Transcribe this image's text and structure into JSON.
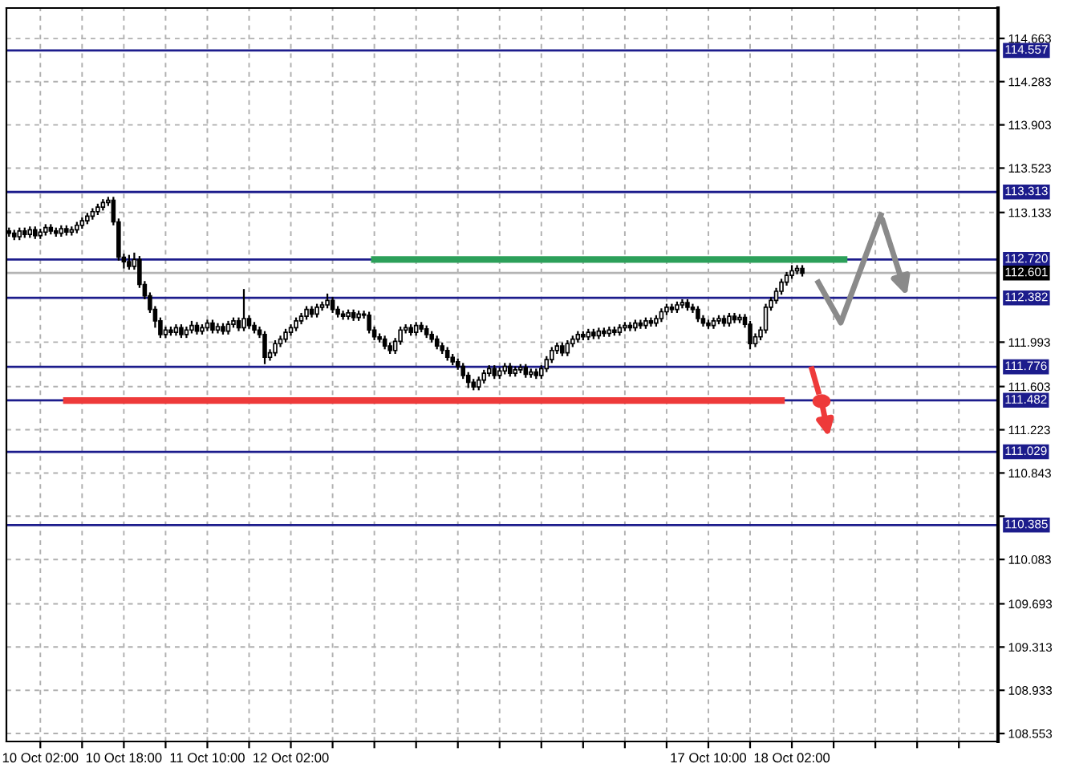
{
  "chart_data": {
    "type": "candlestick",
    "categories": [
      null,
      null,
      null,
      null,
      null,
      null,
      "10 Oct 02:00",
      null,
      null,
      null,
      null,
      null,
      null,
      null,
      null,
      null,
      null,
      null,
      null,
      null,
      null,
      null,
      "10 Oct 18:00",
      null,
      null,
      null,
      null,
      null,
      null,
      null,
      null,
      null,
      null,
      null,
      null,
      null,
      null,
      null,
      "11 Oct 10:00",
      null,
      null,
      null,
      null,
      null,
      null,
      null,
      null,
      null,
      null,
      null,
      null,
      null,
      null,
      null,
      "12 Oct 02:00",
      null,
      null,
      null,
      null,
      null,
      null,
      null,
      null,
      null,
      null,
      null,
      null,
      null,
      null,
      null,
      null,
      null,
      null,
      null,
      null,
      null,
      null,
      null,
      null,
      null,
      null,
      null,
      null,
      null,
      null,
      null,
      null,
      null,
      null,
      null,
      null,
      null,
      null,
      null,
      null,
      null,
      null,
      null,
      null,
      null,
      null,
      null,
      null,
      null,
      null,
      null,
      null,
      null,
      null,
      null,
      null,
      null,
      null,
      null,
      null,
      null,
      null,
      null,
      null,
      null,
      null,
      null,
      null,
      null,
      null,
      null,
      null,
      null,
      null,
      null,
      null,
      null,
      null,
      null,
      "17 Oct 10:00",
      null,
      null,
      null,
      null,
      null,
      null,
      null,
      null,
      null,
      null,
      null,
      null,
      null,
      null,
      null,
      "18 Oct 02:00",
      null,
      null,
      null,
      null,
      null,
      null,
      null,
      null,
      null,
      null,
      null,
      null,
      null,
      null,
      null,
      null,
      null,
      null,
      null,
      null,
      null,
      null,
      null,
      null,
      null,
      null,
      null,
      null,
      null,
      null,
      null,
      null,
      null,
      null,
      null,
      null,
      null,
      null,
      null
    ],
    "ohlc": [
      [
        112.97,
        113.0,
        112.92,
        112.95
      ],
      [
        112.95,
        112.98,
        112.89,
        112.92
      ],
      [
        112.92,
        113.0,
        112.89,
        112.97
      ],
      [
        112.97,
        113.0,
        112.91,
        112.94
      ],
      [
        112.94,
        113.01,
        112.91,
        112.98
      ],
      [
        112.98,
        113.01,
        112.9,
        112.93
      ],
      [
        112.93,
        112.99,
        112.9,
        112.96
      ],
      [
        112.96,
        113.03,
        112.93,
        113.0
      ],
      [
        113.0,
        113.03,
        112.94,
        112.97
      ],
      [
        112.97,
        113.0,
        112.92,
        112.95
      ],
      [
        112.95,
        113.02,
        112.92,
        112.99
      ],
      [
        112.99,
        113.02,
        112.93,
        112.96
      ],
      [
        112.96,
        113.01,
        112.93,
        112.98
      ],
      [
        112.98,
        113.05,
        112.95,
        113.02
      ],
      [
        113.02,
        113.09,
        112.99,
        113.06
      ],
      [
        113.06,
        113.13,
        113.03,
        113.1
      ],
      [
        113.1,
        113.17,
        113.07,
        113.14
      ],
      [
        113.14,
        113.21,
        113.11,
        113.18
      ],
      [
        113.18,
        113.25,
        113.15,
        113.22
      ],
      [
        113.22,
        113.27,
        113.19,
        113.24
      ],
      [
        113.24,
        113.27,
        113.02,
        113.05
      ],
      [
        113.05,
        113.08,
        112.71,
        112.74
      ],
      [
        112.74,
        112.77,
        112.64,
        112.7
      ],
      [
        112.7,
        112.76,
        112.63,
        112.66
      ],
      [
        112.66,
        112.78,
        112.63,
        112.72
      ],
      [
        112.72,
        112.75,
        112.47,
        112.5
      ],
      [
        112.5,
        112.53,
        112.37,
        112.4
      ],
      [
        112.4,
        112.43,
        112.25,
        112.28
      ],
      [
        112.28,
        112.31,
        112.12,
        112.18
      ],
      [
        112.18,
        112.21,
        112.03,
        112.06
      ],
      [
        112.06,
        112.13,
        112.03,
        112.1
      ],
      [
        112.1,
        112.13,
        112.05,
        112.08
      ],
      [
        112.08,
        112.15,
        112.05,
        112.12
      ],
      [
        112.12,
        112.15,
        112.03,
        112.06
      ],
      [
        112.06,
        112.13,
        112.03,
        112.1
      ],
      [
        112.1,
        112.18,
        112.07,
        112.14
      ],
      [
        112.14,
        112.17,
        112.06,
        112.09
      ],
      [
        112.09,
        112.15,
        112.06,
        112.12
      ],
      [
        112.12,
        112.19,
        112.09,
        112.16
      ],
      [
        112.16,
        112.19,
        112.07,
        112.1
      ],
      [
        112.1,
        112.16,
        112.07,
        112.13
      ],
      [
        112.13,
        112.16,
        112.06,
        112.09
      ],
      [
        112.09,
        112.18,
        112.06,
        112.15
      ],
      [
        112.15,
        112.21,
        112.12,
        112.18
      ],
      [
        112.18,
        112.21,
        112.09,
        112.12
      ],
      [
        112.12,
        112.46,
        112.09,
        112.2
      ],
      [
        112.2,
        112.23,
        112.11,
        112.14
      ],
      [
        112.14,
        112.17,
        112.07,
        112.1
      ],
      [
        112.1,
        112.13,
        112.03,
        112.06
      ],
      [
        112.06,
        112.09,
        111.8,
        111.86
      ],
      [
        111.86,
        111.93,
        111.83,
        111.9
      ],
      [
        111.9,
        112.01,
        111.87,
        111.98
      ],
      [
        111.98,
        112.05,
        111.95,
        112.02
      ],
      [
        112.02,
        112.11,
        111.99,
        112.08
      ],
      [
        112.08,
        112.15,
        112.05,
        112.12
      ],
      [
        112.12,
        112.21,
        112.09,
        112.18
      ],
      [
        112.18,
        112.25,
        112.15,
        112.22
      ],
      [
        112.22,
        112.31,
        112.19,
        112.28
      ],
      [
        112.28,
        112.31,
        112.21,
        112.24
      ],
      [
        112.24,
        112.33,
        112.21,
        112.3
      ],
      [
        112.3,
        112.35,
        112.27,
        112.32
      ],
      [
        112.32,
        112.42,
        112.29,
        112.36
      ],
      [
        112.36,
        112.39,
        112.25,
        112.28
      ],
      [
        112.28,
        112.31,
        112.21,
        112.24
      ],
      [
        112.24,
        112.27,
        112.19,
        112.22
      ],
      [
        112.22,
        112.28,
        112.19,
        112.25
      ],
      [
        112.25,
        112.28,
        112.18,
        112.21
      ],
      [
        112.21,
        112.27,
        112.18,
        112.24
      ],
      [
        112.24,
        112.27,
        112.2,
        112.23
      ],
      [
        112.23,
        112.26,
        112.07,
        112.1
      ],
      [
        112.1,
        112.13,
        112.01,
        112.04
      ],
      [
        112.04,
        112.07,
        111.99,
        112.02
      ],
      [
        112.02,
        112.05,
        111.93,
        111.96
      ],
      [
        111.96,
        111.99,
        111.89,
        111.92
      ],
      [
        111.92,
        112.03,
        111.89,
        112.0
      ],
      [
        112.0,
        112.13,
        111.97,
        112.1
      ],
      [
        112.1,
        112.15,
        112.07,
        112.12
      ],
      [
        112.12,
        112.15,
        112.05,
        112.08
      ],
      [
        112.08,
        112.17,
        112.05,
        112.14
      ],
      [
        112.14,
        112.17,
        112.08,
        112.11
      ],
      [
        112.11,
        112.14,
        112.03,
        112.06
      ],
      [
        112.06,
        112.09,
        111.99,
        112.02
      ],
      [
        112.02,
        112.05,
        111.93,
        111.96
      ],
      [
        111.96,
        111.99,
        111.89,
        111.92
      ],
      [
        111.92,
        111.95,
        111.83,
        111.86
      ],
      [
        111.86,
        111.89,
        111.79,
        111.82
      ],
      [
        111.82,
        111.85,
        111.75,
        111.78
      ],
      [
        111.78,
        111.81,
        111.67,
        111.7
      ],
      [
        111.7,
        111.73,
        111.59,
        111.64
      ],
      [
        111.64,
        111.67,
        111.57,
        111.6
      ],
      [
        111.6,
        111.69,
        111.57,
        111.66
      ],
      [
        111.66,
        111.75,
        111.63,
        111.72
      ],
      [
        111.72,
        111.79,
        111.69,
        111.76
      ],
      [
        111.76,
        111.79,
        111.67,
        111.7
      ],
      [
        111.7,
        111.77,
        111.67,
        111.74
      ],
      [
        111.74,
        111.81,
        111.71,
        111.78
      ],
      [
        111.78,
        111.81,
        111.69,
        111.72
      ],
      [
        111.72,
        111.78,
        111.69,
        111.75
      ],
      [
        111.75,
        111.8,
        111.72,
        111.77
      ],
      [
        111.77,
        111.8,
        111.68,
        111.71
      ],
      [
        111.71,
        111.76,
        111.68,
        111.73
      ],
      [
        111.73,
        111.76,
        111.67,
        111.7
      ],
      [
        111.7,
        111.79,
        111.67,
        111.76
      ],
      [
        111.76,
        111.87,
        111.73,
        111.84
      ],
      [
        111.84,
        111.95,
        111.81,
        111.92
      ],
      [
        111.92,
        111.99,
        111.89,
        111.96
      ],
      [
        111.96,
        111.99,
        111.87,
        111.9
      ],
      [
        111.9,
        112.01,
        111.87,
        111.98
      ],
      [
        111.98,
        112.05,
        111.95,
        112.02
      ],
      [
        112.02,
        112.09,
        111.99,
        112.06
      ],
      [
        112.06,
        112.09,
        112.01,
        112.04
      ],
      [
        112.04,
        112.11,
        112.01,
        112.08
      ],
      [
        112.08,
        112.11,
        112.02,
        112.05
      ],
      [
        112.05,
        112.12,
        112.02,
        112.09
      ],
      [
        112.09,
        112.12,
        112.04,
        112.07
      ],
      [
        112.07,
        112.13,
        112.04,
        112.1
      ],
      [
        112.1,
        112.13,
        112.05,
        112.08
      ],
      [
        112.08,
        112.15,
        112.05,
        112.12
      ],
      [
        112.12,
        112.17,
        112.09,
        112.14
      ],
      [
        112.14,
        112.17,
        112.09,
        112.12
      ],
      [
        112.12,
        112.19,
        112.09,
        112.16
      ],
      [
        112.16,
        112.19,
        112.11,
        112.14
      ],
      [
        112.14,
        112.21,
        112.11,
        112.18
      ],
      [
        112.18,
        112.21,
        112.13,
        112.16
      ],
      [
        112.16,
        112.23,
        112.13,
        112.2
      ],
      [
        112.2,
        112.29,
        112.17,
        112.26
      ],
      [
        112.26,
        112.33,
        112.23,
        112.3
      ],
      [
        112.3,
        112.33,
        112.25,
        112.28
      ],
      [
        112.28,
        112.35,
        112.25,
        112.32
      ],
      [
        112.32,
        112.37,
        112.29,
        112.34
      ],
      [
        112.34,
        112.37,
        112.27,
        112.3
      ],
      [
        112.3,
        112.33,
        112.25,
        112.28
      ],
      [
        112.28,
        112.31,
        112.17,
        112.2
      ],
      [
        112.2,
        112.23,
        112.13,
        112.16
      ],
      [
        112.16,
        112.19,
        112.11,
        112.14
      ],
      [
        112.14,
        112.21,
        112.11,
        112.18
      ],
      [
        112.18,
        112.23,
        112.15,
        112.2
      ],
      [
        112.2,
        112.23,
        112.13,
        112.16
      ],
      [
        112.16,
        112.25,
        112.13,
        112.22
      ],
      [
        112.22,
        112.25,
        112.16,
        112.19
      ],
      [
        112.19,
        112.24,
        112.16,
        112.21
      ],
      [
        112.21,
        112.24,
        112.12,
        112.15
      ],
      [
        112.15,
        112.18,
        111.93,
        111.98
      ],
      [
        111.98,
        112.07,
        111.95,
        112.04
      ],
      [
        112.04,
        112.13,
        112.01,
        112.1
      ],
      [
        112.1,
        112.33,
        112.07,
        112.3
      ],
      [
        112.3,
        112.39,
        112.27,
        112.36
      ],
      [
        112.36,
        112.47,
        112.33,
        112.44
      ],
      [
        112.44,
        112.55,
        112.41,
        112.52
      ],
      [
        112.52,
        112.61,
        112.49,
        112.58
      ],
      [
        112.58,
        112.67,
        112.55,
        112.62
      ],
      [
        112.62,
        112.67,
        112.59,
        112.64
      ],
      [
        112.64,
        112.67,
        112.57,
        112.6
      ],
      null,
      null,
      null,
      null,
      null,
      null,
      null,
      null,
      null,
      null,
      null,
      null,
      null,
      null,
      null,
      null,
      null,
      null,
      null,
      null,
      null,
      null,
      null,
      null,
      null,
      null,
      null,
      null,
      null,
      null,
      null,
      null,
      null,
      null,
      null,
      null,
      null
    ],
    "series": [
      {
        "type": "line",
        "color": "#2ca05a",
        "values": [
          null,
          null,
          null,
          null,
          null,
          null,
          null,
          null,
          null,
          null,
          null,
          null,
          null,
          null,
          null,
          null,
          null,
          null,
          null,
          null,
          null,
          null,
          null,
          null,
          null,
          null,
          null,
          null,
          null,
          null,
          null,
          null,
          null,
          null,
          null,
          null,
          null,
          null,
          null,
          null,
          null,
          null,
          null,
          null,
          null,
          null,
          null,
          null,
          null,
          null,
          null,
          null,
          null,
          null,
          null,
          null,
          null,
          null,
          null,
          null,
          null,
          null,
          null,
          null,
          null,
          null,
          null,
          null,
          null,
          null,
          112.72,
          112.72,
          112.72,
          112.72,
          112.72,
          112.72,
          112.72,
          112.72,
          112.72,
          112.72,
          112.72,
          112.72,
          112.72,
          112.72,
          112.72,
          112.72,
          112.72,
          112.72,
          112.72,
          112.72,
          112.72,
          112.72,
          112.72,
          112.72,
          112.72,
          112.72,
          112.72,
          112.72,
          112.72,
          112.72,
          112.72,
          112.72,
          112.72,
          112.72,
          112.72,
          112.72,
          112.72,
          112.72,
          112.72,
          112.72,
          112.72,
          112.72,
          112.72,
          112.72,
          112.72,
          112.72,
          112.72,
          112.72,
          112.72,
          112.72,
          112.72,
          112.72,
          112.72,
          112.72,
          112.72,
          112.72,
          112.72,
          112.72,
          112.72,
          112.72,
          112.72,
          112.72,
          112.72,
          112.72,
          112.72,
          112.72,
          112.72,
          112.72,
          112.72,
          112.72,
          112.72,
          112.72,
          112.72,
          112.72,
          112.72,
          112.72,
          112.72,
          112.72,
          112.72,
          112.72,
          112.72,
          112.72,
          112.72,
          112.72,
          112.72,
          112.72,
          112.72,
          112.72,
          112.72,
          112.72,
          112.72,
          null,
          null,
          null,
          null,
          null,
          null,
          null,
          null,
          null,
          null,
          null,
          null,
          null,
          null,
          null,
          null,
          null,
          null,
          null,
          null,
          null,
          null,
          null,
          null,
          null,
          null,
          null,
          null,
          null
        ]
      },
      {
        "type": "line",
        "color": "#ee3a3a",
        "values": [
          null,
          null,
          null,
          null,
          null,
          null,
          null,
          null,
          null,
          null,
          null,
          111.48,
          111.48,
          111.48,
          111.48,
          111.48,
          111.48,
          111.48,
          111.48,
          111.48,
          111.48,
          111.48,
          111.48,
          111.48,
          111.48,
          111.48,
          111.48,
          111.48,
          111.48,
          111.48,
          111.48,
          111.48,
          111.48,
          111.48,
          111.48,
          111.48,
          111.48,
          111.48,
          111.48,
          111.48,
          111.48,
          111.48,
          111.48,
          111.48,
          111.48,
          111.48,
          111.48,
          111.48,
          111.48,
          111.48,
          111.48,
          111.48,
          111.48,
          111.48,
          111.48,
          111.48,
          111.48,
          111.48,
          111.48,
          111.48,
          111.48,
          111.48,
          111.48,
          111.48,
          111.48,
          111.48,
          111.48,
          111.48,
          111.48,
          111.48,
          111.48,
          111.48,
          111.48,
          111.48,
          111.48,
          111.48,
          111.48,
          111.48,
          111.48,
          111.48,
          111.48,
          111.48,
          111.48,
          111.48,
          111.48,
          111.48,
          111.48,
          111.48,
          111.48,
          111.48,
          111.48,
          111.48,
          111.48,
          111.48,
          111.48,
          111.48,
          111.48,
          111.48,
          111.48,
          111.48,
          111.48,
          111.48,
          111.48,
          111.48,
          111.48,
          111.48,
          111.48,
          111.48,
          111.48,
          111.48,
          111.48,
          111.48,
          111.48,
          111.48,
          111.48,
          111.48,
          111.48,
          111.48,
          111.48,
          111.48,
          111.48,
          111.48,
          111.48,
          111.48,
          111.48,
          111.48,
          111.48,
          111.48,
          111.48,
          111.48,
          111.48,
          111.48,
          111.48,
          111.48,
          111.48,
          111.48,
          111.48,
          111.48,
          111.48,
          111.48,
          111.48,
          111.48,
          111.48,
          111.48,
          111.48,
          111.48,
          111.48,
          111.48,
          111.48,
          null,
          null,
          null,
          null,
          null,
          null,
          null,
          null,
          null,
          null,
          null,
          null,
          null,
          null,
          null,
          null,
          null,
          null,
          null,
          null,
          null,
          null,
          null,
          null,
          null,
          null,
          null,
          null,
          null,
          null,
          null,
          null,
          null,
          null,
          null,
          null,
          null,
          null,
          null,
          null,
          null
        ]
      }
    ],
    "ylim": [
      108.483,
      114.93
    ],
    "yticks": [
      114.663,
      114.283,
      113.903,
      113.523,
      113.133,
      111.993,
      111.603,
      111.223,
      110.843,
      {
        "value": 110.463,
        "label": null
      },
      110.083,
      109.693,
      109.313,
      108.933,
      108.553
    ],
    "ref_lines": [
      {
        "axis": "y",
        "value": 114.557,
        "label": "114.557",
        "color": "#1c1c8c"
      },
      {
        "axis": "y",
        "value": 113.313,
        "label": "113.313",
        "color": "#1c1c8c"
      },
      {
        "axis": "y",
        "value": 112.72,
        "label": "112.720",
        "color": "#1c1c8c"
      },
      {
        "axis": "y",
        "value": 112.601,
        "label": "112.601",
        "color": "#b4b4b4"
      },
      {
        "axis": "y",
        "value": 112.382,
        "label": "112.382",
        "color": "#1c1c8c"
      },
      {
        "axis": "y",
        "value": 111.776,
        "label": "111.776",
        "color": "#1c1c8c"
      },
      {
        "axis": "y",
        "value": 111.482,
        "label": "111.482",
        "color": "#1c1c8c"
      },
      {
        "axis": "y",
        "value": 111.029,
        "label": "111.029",
        "color": "#1c1c8c"
      },
      {
        "axis": "y",
        "value": 110.385,
        "label": "110.385",
        "color": "#1c1c8c"
      }
    ],
    "grid": true
  }
}
